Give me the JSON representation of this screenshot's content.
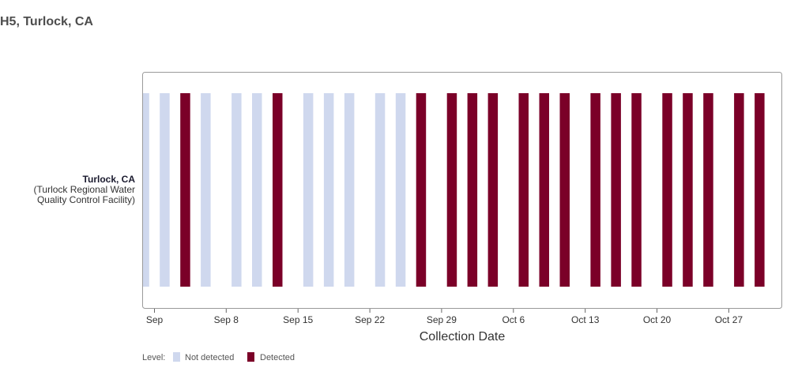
{
  "page": {
    "title": "H5, Turlock, CA"
  },
  "chart_data": {
    "type": "heatmap",
    "title": "H5, Turlock, CA",
    "xlabel": "Collection Date",
    "ylabel": "",
    "site": {
      "name": "Turlock, CA",
      "detail_line1": "(Turlock Regional Water",
      "detail_line2": "Quality Control Facility)"
    },
    "x_range": [
      "2024-08-31",
      "2024-11-01"
    ],
    "x_ticks": [
      {
        "date": "2024-09-01",
        "label": "Sep"
      },
      {
        "date": "2024-09-08",
        "label": "Sep 8"
      },
      {
        "date": "2024-09-15",
        "label": "Sep 15"
      },
      {
        "date": "2024-09-22",
        "label": "Sep 22"
      },
      {
        "date": "2024-09-29",
        "label": "Sep 29"
      },
      {
        "date": "2024-10-06",
        "label": "Oct 6"
      },
      {
        "date": "2024-10-13",
        "label": "Oct 13"
      },
      {
        "date": "2024-10-20",
        "label": "Oct 20"
      },
      {
        "date": "2024-10-27",
        "label": "Oct 27"
      }
    ],
    "levels": [
      {
        "key": "not_detected",
        "label": "Not detected",
        "color": "#cfd8ee"
      },
      {
        "key": "detected",
        "label": "Detected",
        "color": "#7b0028"
      }
    ],
    "legend": {
      "title": "Level:",
      "placement": "bottom-left"
    },
    "samples": [
      {
        "date": "2024-08-31",
        "level": "not_detected"
      },
      {
        "date": "2024-09-02",
        "level": "not_detected"
      },
      {
        "date": "2024-09-04",
        "level": "detected"
      },
      {
        "date": "2024-09-06",
        "level": "not_detected"
      },
      {
        "date": "2024-09-09",
        "level": "not_detected"
      },
      {
        "date": "2024-09-11",
        "level": "not_detected"
      },
      {
        "date": "2024-09-13",
        "level": "detected"
      },
      {
        "date": "2024-09-16",
        "level": "not_detected"
      },
      {
        "date": "2024-09-18",
        "level": "not_detected"
      },
      {
        "date": "2024-09-20",
        "level": "not_detected"
      },
      {
        "date": "2024-09-23",
        "level": "not_detected"
      },
      {
        "date": "2024-09-25",
        "level": "not_detected"
      },
      {
        "date": "2024-09-27",
        "level": "detected"
      },
      {
        "date": "2024-09-30",
        "level": "detected"
      },
      {
        "date": "2024-10-02",
        "level": "detected"
      },
      {
        "date": "2024-10-04",
        "level": "detected"
      },
      {
        "date": "2024-10-07",
        "level": "detected"
      },
      {
        "date": "2024-10-09",
        "level": "detected"
      },
      {
        "date": "2024-10-11",
        "level": "detected"
      },
      {
        "date": "2024-10-14",
        "level": "detected"
      },
      {
        "date": "2024-10-16",
        "level": "detected"
      },
      {
        "date": "2024-10-18",
        "level": "detected"
      },
      {
        "date": "2024-10-21",
        "level": "detected"
      },
      {
        "date": "2024-10-23",
        "level": "detected"
      },
      {
        "date": "2024-10-25",
        "level": "detected"
      },
      {
        "date": "2024-10-28",
        "level": "detected"
      },
      {
        "date": "2024-10-30",
        "level": "detected"
      }
    ]
  }
}
